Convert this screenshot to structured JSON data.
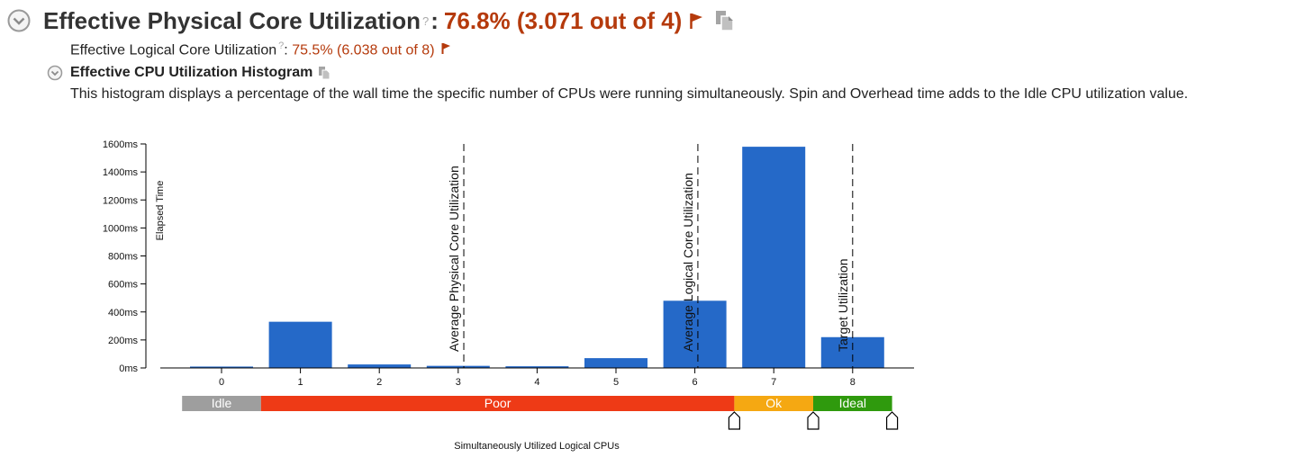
{
  "header": {
    "title": "Effective Physical Core Utilization",
    "help_glyph": "?",
    "separator": ":",
    "value": "76.8% (3.071 out of 4)"
  },
  "logical": {
    "label": "Effective Logical Core Utilization",
    "help_glyph": "?",
    "separator": ":",
    "value": "75.5% (6.038 out of 8)"
  },
  "histogram": {
    "title": "Effective CPU Utilization Histogram",
    "description": "This histogram displays a percentage of the wall time the specific number of CPUs were running simultaneously. Spin and Overhead time adds to the Idle CPU utilization value."
  },
  "colors": {
    "accent": "#b53a0c",
    "bar": "#2569c8",
    "idle": "#9e9e9e",
    "poor": "#ee3a16",
    "ok": "#f5a812",
    "ideal": "#2f9a0d"
  },
  "chart_data": {
    "type": "bar",
    "categories": [
      "0",
      "1",
      "2",
      "3",
      "4",
      "5",
      "6",
      "7",
      "8"
    ],
    "values": [
      10,
      330,
      25,
      15,
      12,
      70,
      480,
      1580,
      220
    ],
    "ylabel": "Elapsed Time",
    "xlabel": "Simultaneously Utilized Logical CPUs",
    "ylim": [
      0,
      1600
    ],
    "yticks": [
      "0ms",
      "200ms",
      "400ms",
      "600ms",
      "800ms",
      "1000ms",
      "1200ms",
      "1400ms",
      "1600ms"
    ],
    "reference_lines": [
      {
        "label": "Average Physical Core Utilization",
        "x": 3.071
      },
      {
        "label": "Average Logical Core Utilization",
        "x": 6.038
      },
      {
        "label": "Target Utilization",
        "x": 8
      }
    ],
    "zones": [
      {
        "label": "Idle",
        "from": -0.5,
        "to": 0.5,
        "color": "#9e9e9e"
      },
      {
        "label": "Poor",
        "from": 0.5,
        "to": 6.5,
        "color": "#ee3a16"
      },
      {
        "label": "Ok",
        "from": 6.5,
        "to": 7.5,
        "color": "#f5a812"
      },
      {
        "label": "Ideal",
        "from": 7.5,
        "to": 8.5,
        "color": "#2f9a0d"
      }
    ],
    "zone_markers": [
      6.5,
      7.5,
      8.5
    ]
  }
}
